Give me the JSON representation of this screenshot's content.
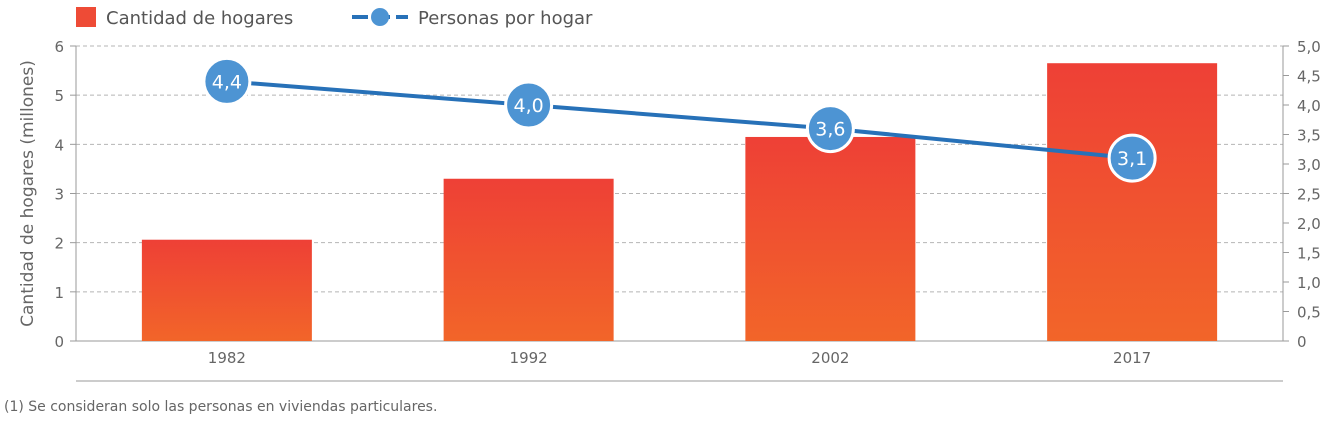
{
  "chart_data": {
    "type": "bar",
    "categories": [
      "1982",
      "1992",
      "2002",
      "2017"
    ],
    "series": [
      {
        "name": "Cantidad de hogares",
        "type": "bar",
        "axis": "left",
        "values": [
          2.06,
          3.3,
          4.15,
          5.65
        ],
        "color": "#ee4b36"
      },
      {
        "name": "Personas por hogar",
        "type": "line",
        "axis": "right",
        "values": [
          4.4,
          4.0,
          3.6,
          3.1
        ],
        "labels": [
          "4,4",
          "4,0",
          "3,6",
          "3,1"
        ],
        "color": "#2771b8",
        "marker_color": "#4d94d3"
      }
    ],
    "ylabel": "Cantidad de hogares (millones)",
    "ylim": [
      0,
      6
    ],
    "yticks": [
      "0",
      "1",
      "2",
      "3",
      "4",
      "5",
      "6"
    ],
    "y2lim": [
      0,
      5
    ],
    "y2ticks": [
      "0",
      "0,5",
      "1,0",
      "1,5",
      "2,0",
      "2,5",
      "3,0",
      "3,5",
      "4,0",
      "4,5",
      "5,0"
    ],
    "grid": true,
    "legend_position": "top-left"
  },
  "footnote": "(1) Se consideran solo las personas en viviendas particulares."
}
